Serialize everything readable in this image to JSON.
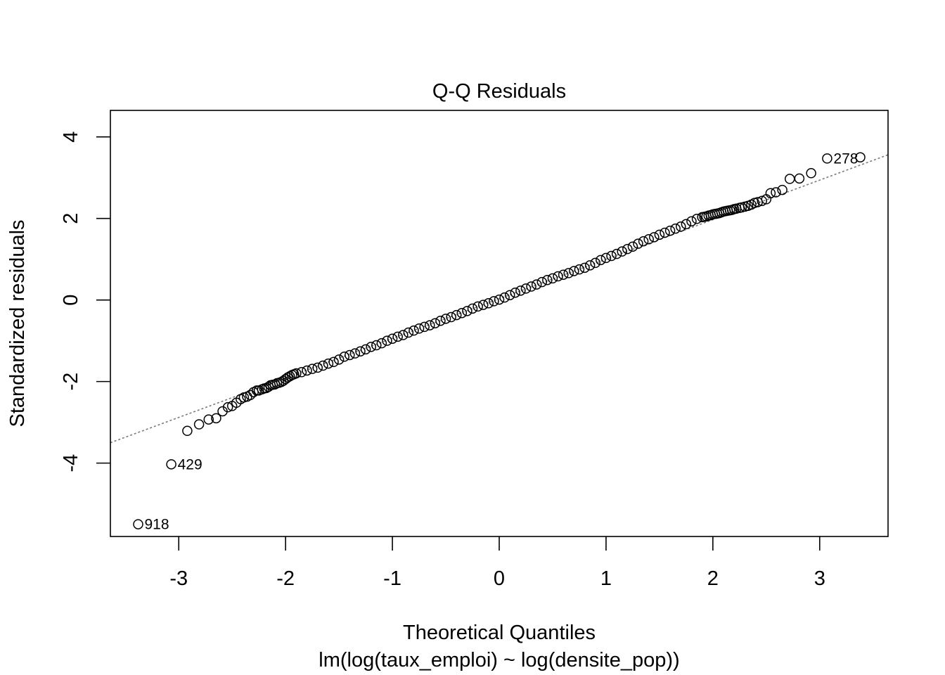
{
  "chart_data": {
    "type": "scatter",
    "title": "Q-Q Residuals",
    "xlabel": "Theoretical Quantiles",
    "subtitle": "lm(log(taux_emploi) ~ log(densite_pop))",
    "ylabel": "Standardized residuals",
    "xlim": [
      -3.64,
      3.64
    ],
    "ylim": [
      -5.8,
      4.65
    ],
    "x_ticks": [
      -3,
      -2,
      -1,
      0,
      1,
      2,
      3
    ],
    "y_ticks": [
      -4,
      -2,
      0,
      2,
      4
    ],
    "x_tick_labels": [
      "-3",
      "-2",
      "-1",
      "0",
      "1",
      "2",
      "3"
    ],
    "y_tick_labels": [
      "-4",
      "-2",
      "0",
      "2",
      "4"
    ],
    "grid": false,
    "reference_line": {
      "slope": 0.97,
      "intercept": 0.03,
      "style": "dotted",
      "color": "#7a7a7a"
    },
    "point_color": "#000000",
    "labeled_points": [
      {
        "label": "918",
        "x": -3.38,
        "y": -5.5
      },
      {
        "label": "429",
        "x": -3.07,
        "y": -4.03
      },
      {
        "label": "278",
        "x": 3.07,
        "y": 3.47
      }
    ],
    "points": {
      "x": [
        -3.38,
        -3.07,
        -2.92,
        -2.81,
        -2.72,
        -2.65,
        -2.59,
        -2.54,
        -2.5,
        -2.46,
        -2.42,
        -2.39,
        -2.36,
        -2.33,
        -2.3,
        -2.27,
        -2.25,
        -2.22,
        -2.2,
        -2.18,
        -2.16,
        -2.14,
        -2.12,
        -2.1,
        -2.08,
        -2.06,
        -2.04,
        -2.02,
        -2.0,
        -1.98,
        -1.96,
        -1.94,
        -1.92,
        -1.9,
        -1.85,
        -1.8,
        -1.75,
        -1.7,
        -1.65,
        -1.6,
        -1.55,
        -1.5,
        -1.45,
        -1.4,
        -1.35,
        -1.3,
        -1.25,
        -1.2,
        -1.15,
        -1.1,
        -1.05,
        -1.0,
        -0.95,
        -0.9,
        -0.85,
        -0.8,
        -0.75,
        -0.7,
        -0.65,
        -0.6,
        -0.55,
        -0.5,
        -0.45,
        -0.4,
        -0.35,
        -0.3,
        -0.25,
        -0.2,
        -0.15,
        -0.1,
        -0.05,
        0.0,
        0.05,
        0.1,
        0.15,
        0.2,
        0.25,
        0.3,
        0.35,
        0.4,
        0.45,
        0.5,
        0.55,
        0.6,
        0.65,
        0.7,
        0.75,
        0.8,
        0.85,
        0.9,
        0.95,
        1.0,
        1.05,
        1.1,
        1.15,
        1.2,
        1.25,
        1.3,
        1.35,
        1.4,
        1.45,
        1.5,
        1.55,
        1.6,
        1.65,
        1.7,
        1.75,
        1.8,
        1.85,
        1.9,
        1.92,
        1.94,
        1.96,
        1.98,
        2.0,
        2.02,
        2.04,
        2.06,
        2.08,
        2.1,
        2.12,
        2.14,
        2.16,
        2.18,
        2.2,
        2.22,
        2.25,
        2.27,
        2.3,
        2.33,
        2.36,
        2.39,
        2.42,
        2.46,
        2.5,
        2.54,
        2.59,
        2.65,
        2.72,
        2.81,
        2.92,
        3.07,
        3.38
      ],
      "y": [
        -5.5,
        -4.03,
        -3.21,
        -3.05,
        -2.93,
        -2.9,
        -2.73,
        -2.63,
        -2.6,
        -2.52,
        -2.43,
        -2.39,
        -2.37,
        -2.33,
        -2.26,
        -2.22,
        -2.22,
        -2.19,
        -2.17,
        -2.16,
        -2.13,
        -2.09,
        -2.08,
        -2.07,
        -2.04,
        -2.03,
        -2.01,
        -1.98,
        -1.94,
        -1.9,
        -1.87,
        -1.84,
        -1.82,
        -1.8,
        -1.77,
        -1.73,
        -1.69,
        -1.66,
        -1.61,
        -1.56,
        -1.52,
        -1.46,
        -1.39,
        -1.35,
        -1.31,
        -1.26,
        -1.21,
        -1.15,
        -1.11,
        -1.06,
        -1.0,
        -0.95,
        -0.9,
        -0.86,
        -0.8,
        -0.75,
        -0.7,
        -0.66,
        -0.62,
        -0.57,
        -0.51,
        -0.46,
        -0.42,
        -0.37,
        -0.32,
        -0.27,
        -0.21,
        -0.16,
        -0.12,
        -0.08,
        -0.03,
        0.01,
        0.06,
        0.12,
        0.18,
        0.23,
        0.28,
        0.33,
        0.38,
        0.44,
        0.49,
        0.53,
        0.58,
        0.62,
        0.66,
        0.71,
        0.75,
        0.79,
        0.85,
        0.91,
        0.98,
        1.03,
        1.08,
        1.13,
        1.19,
        1.25,
        1.31,
        1.38,
        1.44,
        1.49,
        1.54,
        1.6,
        1.65,
        1.7,
        1.75,
        1.8,
        1.86,
        1.93,
        1.99,
        2.03,
        2.04,
        2.05,
        2.07,
        2.08,
        2.1,
        2.11,
        2.12,
        2.13,
        2.15,
        2.17,
        2.18,
        2.19,
        2.2,
        2.21,
        2.23,
        2.24,
        2.26,
        2.27,
        2.29,
        2.31,
        2.34,
        2.38,
        2.4,
        2.43,
        2.47,
        2.62,
        2.64,
        2.7,
        2.97,
        2.98,
        3.11,
        3.47,
        3.5
      ]
    }
  }
}
